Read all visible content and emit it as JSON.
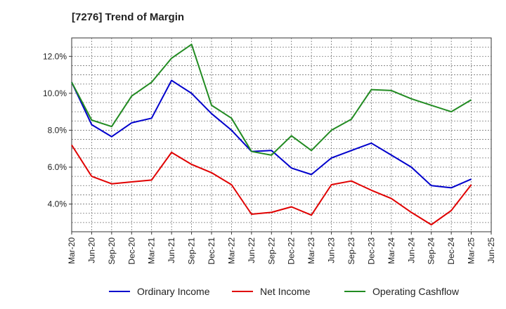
{
  "chart_data": {
    "type": "line",
    "title": "[7276]  Trend of Margin",
    "xlabel": "",
    "ylabel": "",
    "x": [
      "Mar-20",
      "Jun-20",
      "Sep-20",
      "Dec-20",
      "Mar-21",
      "Jun-21",
      "Sep-21",
      "Dec-21",
      "Mar-22",
      "Jun-22",
      "Sep-22",
      "Dec-22",
      "Mar-23",
      "Jun-23",
      "Sep-23",
      "Dec-23",
      "Mar-24",
      "Jun-24",
      "Sep-24",
      "Dec-24",
      "Mar-25",
      "Jun-25"
    ],
    "ylim": [
      2.5,
      13.0
    ],
    "yticks": [
      4.0,
      6.0,
      8.0,
      10.0,
      12.0
    ],
    "ytick_labels": [
      "4.0%",
      "6.0%",
      "8.0%",
      "10.0%",
      "12.0%"
    ],
    "grid": true,
    "legend_position": "bottom",
    "series": [
      {
        "name": "Ordinary Income",
        "color": "#0000cc",
        "values": [
          10.6,
          8.3,
          7.65,
          8.4,
          8.65,
          10.7,
          10.0,
          8.9,
          8.0,
          6.85,
          6.9,
          5.95,
          5.6,
          6.5,
          6.9,
          7.3,
          6.65,
          6.0,
          5.0,
          4.88,
          5.35,
          null
        ]
      },
      {
        "name": "Net Income",
        "color": "#e00000",
        "values": [
          7.2,
          5.5,
          5.1,
          5.2,
          5.3,
          6.8,
          6.15,
          5.7,
          5.05,
          3.45,
          3.55,
          3.85,
          3.4,
          5.05,
          5.25,
          4.75,
          4.3,
          3.55,
          2.88,
          3.65,
          5.05,
          null
        ]
      },
      {
        "name": "Operating Cashflow",
        "color": "#228b22",
        "values": [
          10.6,
          8.55,
          8.2,
          9.85,
          10.6,
          11.9,
          12.65,
          9.35,
          8.65,
          6.85,
          6.65,
          7.7,
          6.9,
          8.0,
          8.6,
          10.2,
          10.15,
          9.7,
          9.35,
          9.0,
          9.65,
          null
        ]
      }
    ]
  }
}
